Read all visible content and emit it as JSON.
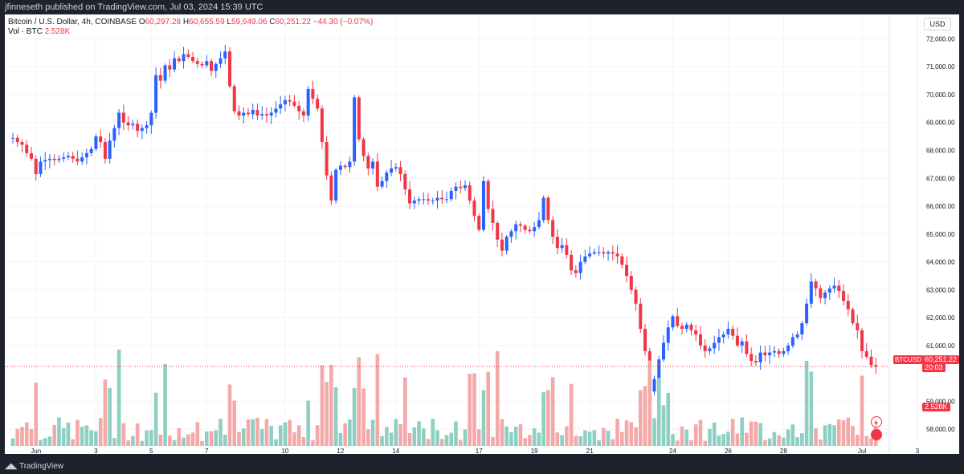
{
  "header": {
    "published": "jfinneseth published on TradingView.com, Jul 03, 2024 15:39 UTC"
  },
  "legend": {
    "symbol": "Bitcoin / U.S. Dollar, 4h, COINBASE",
    "o_label": "O",
    "o": "60,297.28",
    "h_label": "H",
    "h": "60,655.59",
    "l_label": "L",
    "l": "59,649.06",
    "c_label": "C",
    "c": "60,251.22",
    "change": "−44.30 (−0.07%)",
    "vol_label": "Vol · BTC",
    "vol": "2.528K"
  },
  "currency_button": "USD",
  "price_axis": {
    "ticks": [
      "72,000.00",
      "71,000.00",
      "70,000.00",
      "69,000.00",
      "68,000.00",
      "67,000.00",
      "66,000.00",
      "65,000.00",
      "64,000.00",
      "63,000.00",
      "62,000.00",
      "61,000.00",
      "59,000.00",
      "58,000.00"
    ]
  },
  "time_axis": {
    "ticks": [
      "Jun",
      "3",
      "5",
      "7",
      "10",
      "12",
      "14",
      "17",
      "19",
      "21",
      "24",
      "26",
      "28",
      "Jul",
      "3",
      "5"
    ]
  },
  "last_price": {
    "ticker": "BTCUSD",
    "price": "60,251.22",
    "countdown": "20:03"
  },
  "last_volume": "2.528K",
  "footer": {
    "logo": "TradingView"
  },
  "colors": {
    "up": "#2962ff",
    "down": "#f23645",
    "vol_up": "#8ecfc3",
    "vol_down": "#f5a8a8",
    "grid": "#f0f3fa"
  },
  "chart_data": {
    "type": "candlestick",
    "interval": "4h",
    "ylim": [
      57400,
      72300
    ],
    "candles_close": [
      68450,
      68300,
      68200,
      67900,
      67700,
      67150,
      67600,
      67650,
      67700,
      67650,
      67700,
      67750,
      67800,
      67700,
      67600,
      67750,
      67900,
      68050,
      68500,
      68300,
      67700,
      68350,
      68800,
      69350,
      69000,
      68900,
      68950,
      68700,
      68800,
      68900,
      69350,
      70700,
      70500,
      71050,
      70900,
      71300,
      71200,
      71450,
      71350,
      71200,
      71100,
      71050,
      71200,
      70850,
      71100,
      71300,
      71550,
      70300,
      69400,
      69250,
      69350,
      69300,
      69450,
      69250,
      69300,
      69250,
      69350,
      69500,
      69650,
      69800,
      69750,
      69600,
      69400,
      69250,
      70200,
      69850,
      69500,
      68300,
      67100,
      66200,
      67300,
      67450,
      67400,
      67600,
      69900,
      68400,
      67800,
      67350,
      67600,
      66700,
      66900,
      67200,
      67350,
      67400,
      67150,
      66600,
      66100,
      66200,
      66250,
      66250,
      66200,
      66200,
      66300,
      66250,
      66250,
      66550,
      66700,
      66650,
      66750,
      66200,
      65650,
      65150,
      66900,
      65900,
      65400,
      64800,
      64400,
      64900,
      65100,
      65350,
      65300,
      65150,
      65100,
      65250,
      65500,
      66300,
      65500,
      64900,
      64500,
      64600,
      64250,
      63700,
      63600,
      64000,
      64200,
      64300,
      64350,
      64350,
      64300,
      64350,
      64300,
      64200,
      63900,
      63500,
      63000,
      62500,
      61600,
      60800,
      59350,
      59800,
      60500,
      61100,
      61650,
      62050,
      61700,
      61600,
      61750,
      61550,
      61400,
      61000,
      60800,
      60900,
      61100,
      61300,
      61400,
      61600,
      61350,
      61000,
      61150,
      60700,
      60450,
      60400,
      60750,
      60650,
      60750,
      60800,
      60700,
      60800,
      61000,
      61300,
      61400,
      61800,
      62500,
      63300,
      63050,
      62700,
      62900,
      63050,
      63150,
      62950,
      62600,
      62300,
      61800,
      61550,
      60800,
      60600,
      60300,
      60251
    ],
    "last_price": 60251.22,
    "last_volume": "2.528K"
  }
}
